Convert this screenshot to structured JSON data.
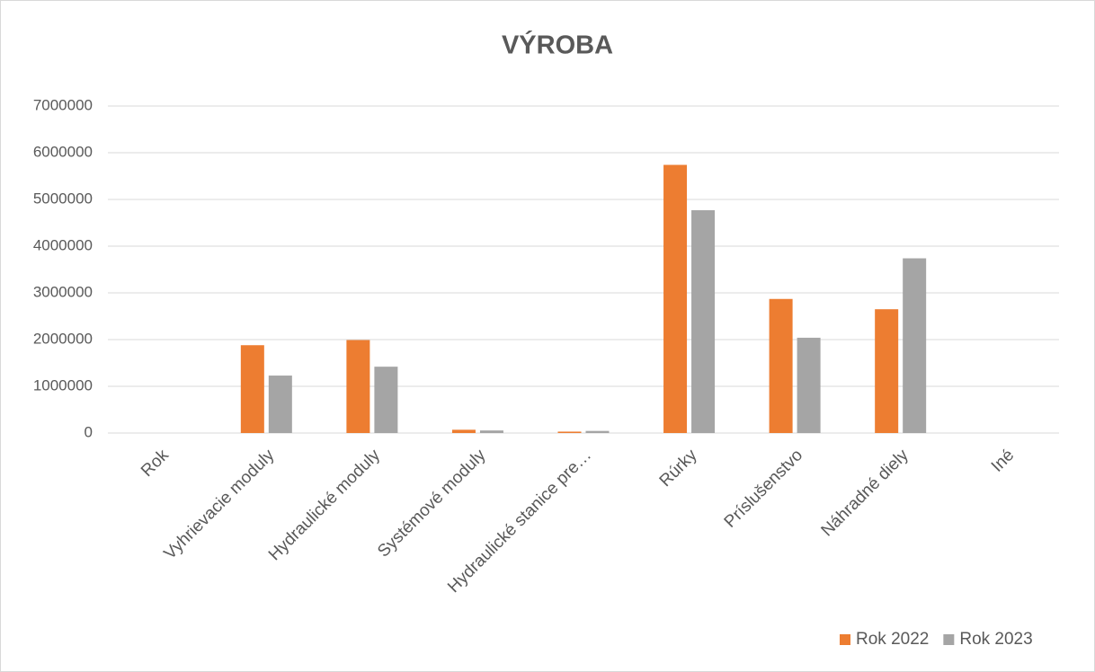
{
  "chart_data": {
    "type": "bar",
    "title": "VÝROBA",
    "categories": [
      "Rok",
      "Vyhrievacie moduly",
      "Hydraulické moduly",
      "Systémové moduly",
      "Hydraulické stanice pre…",
      "Rúrky",
      "Príslušenstvo",
      "Náhradné diely",
      "Iné"
    ],
    "series": [
      {
        "name": "Rok 2022",
        "color": "#ed7d31",
        "values": [
          0,
          1880000,
          1990000,
          70000,
          30000,
          5740000,
          2870000,
          2650000,
          0
        ]
      },
      {
        "name": "Rok 2023",
        "color": "#a5a5a5",
        "values": [
          0,
          1230000,
          1420000,
          55000,
          45000,
          4770000,
          2040000,
          3740000,
          0
        ]
      }
    ],
    "ylim": [
      0,
      7000000
    ],
    "yticks": [
      0,
      1000000,
      2000000,
      3000000,
      4000000,
      5000000,
      6000000,
      7000000
    ],
    "grid": true,
    "legend": "bottom-right"
  }
}
